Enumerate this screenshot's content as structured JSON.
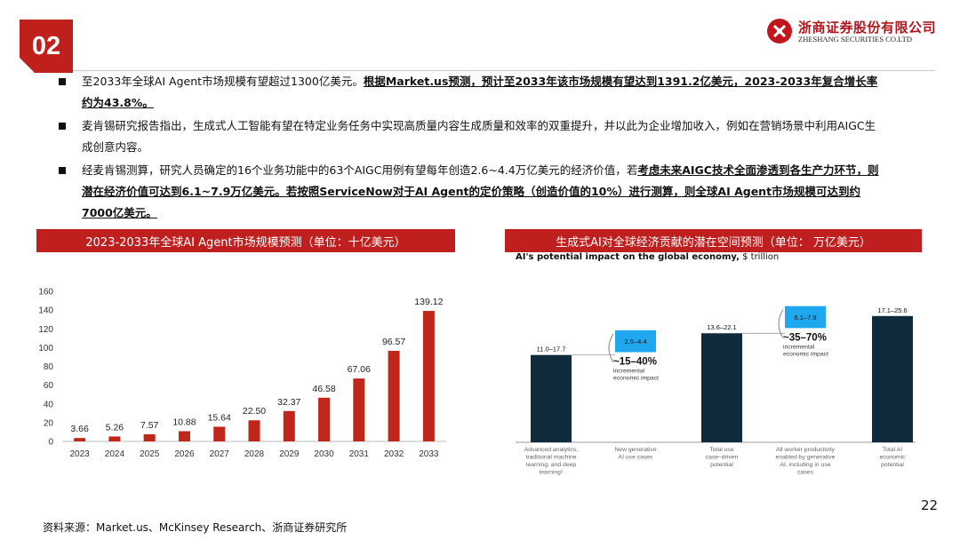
{
  "header": {
    "section_number": "02",
    "logo_cn": "浙商证券股份有限公司",
    "logo_en": "ZHESHANG SECURITIES CO.LTD"
  },
  "bullets": [
    {
      "plain": "至2033年全球AI Agent市场规模有望超过1300亿美元。",
      "bold": "根据Market.us预测，预计至2033年该市场规模有望达到1391.2亿美元，2023-2033年复合增长率约为43.8%。",
      "plain2": "",
      "bold2": ""
    },
    {
      "plain": "麦肯锡研究报告指出，生成式人工智能有望在特定业务任务中实现高质量内容生成质量和效率的双重提升，并以此为企业增加收入，例如在营销场景中利用AIGC生成创意内容。",
      "bold": "",
      "plain2": "",
      "bold2": ""
    },
    {
      "plain": "经麦肯锡测算，研究人员确定的16个业务功能中的63个AIGC用例有望每年创造2.6~4.4万亿美元的经济价值，若",
      "bold": "考虑未来AIGC技术全面渗透到各生产力环节，则潜在经济价值可达到6.1~7.9万亿美元。若按照ServiceNow对于AI Agent的定价策略（创造价值的10%）进行测算，则全球AI Agent市场规模可达到约7000亿美元。",
      "plain2": "",
      "bold2": ""
    }
  ],
  "left_chart": {
    "title": "2023-2033年全球AI Agent市场规模预测（单位：十亿美元）"
  },
  "right_chart": {
    "title": "生成式AI对全球经济贡献的潜在空间预测（单位： 万亿美元）",
    "subtitle_bold": "AI's potential impact on the global economy,",
    "subtitle_unit": " $ trillion"
  },
  "chart_data": [
    {
      "type": "bar",
      "title": "2023-2033年全球AI Agent市场规模预测（单位：十亿美元）",
      "categories": [
        "2023",
        "2024",
        "2025",
        "2026",
        "2027",
        "2028",
        "2029",
        "2030",
        "2031",
        "2032",
        "2033"
      ],
      "values": [
        3.66,
        5.26,
        7.57,
        10.88,
        15.64,
        22.5,
        32.37,
        46.58,
        67.06,
        96.57,
        139.12
      ],
      "value_labels": [
        "3.66",
        "5.26",
        "7.57",
        "10.88",
        "15.64",
        "22.50",
        "32.37",
        "46.58",
        "67.06",
        "96.57",
        "139.12"
      ],
      "ylim": [
        0,
        160
      ],
      "yticks": [
        0,
        20,
        40,
        60,
        80,
        100,
        120,
        140,
        160
      ],
      "grid": false,
      "color": "#c0271b"
    },
    {
      "type": "bar",
      "title": "AI's potential impact on the global economy, $ trillion",
      "categories": [
        "Advanced analytics, traditional machine learning, and deep learning¹",
        "New generative AI use cases",
        "Total use case–driven potential",
        "All worker productivity enabled by generative AI, including in use cases",
        "Total AI economic potential"
      ],
      "ranges": [
        [
          11.0,
          17.7
        ],
        [
          2.6,
          4.4
        ],
        [
          13.6,
          22.1
        ],
        [
          6.1,
          7.9
        ],
        [
          17.1,
          25.6
        ]
      ],
      "range_labels": [
        "11.0–17.7",
        "2.6–4.4",
        "13.6–22.1",
        "6.1–7.9",
        "17.1–25.6"
      ],
      "increments": [
        {
          "pct": "~15–40%",
          "label": "incremental economic impact"
        },
        {
          "pct": "~35–70%",
          "label": "incremental economic impact"
        }
      ],
      "colors": {
        "total": "#0e2a3b",
        "increment": "#1fa7ef"
      }
    }
  ],
  "source": "资料来源：Market.us、McKinsey Research、浙商证券研究所",
  "page_number": "22"
}
